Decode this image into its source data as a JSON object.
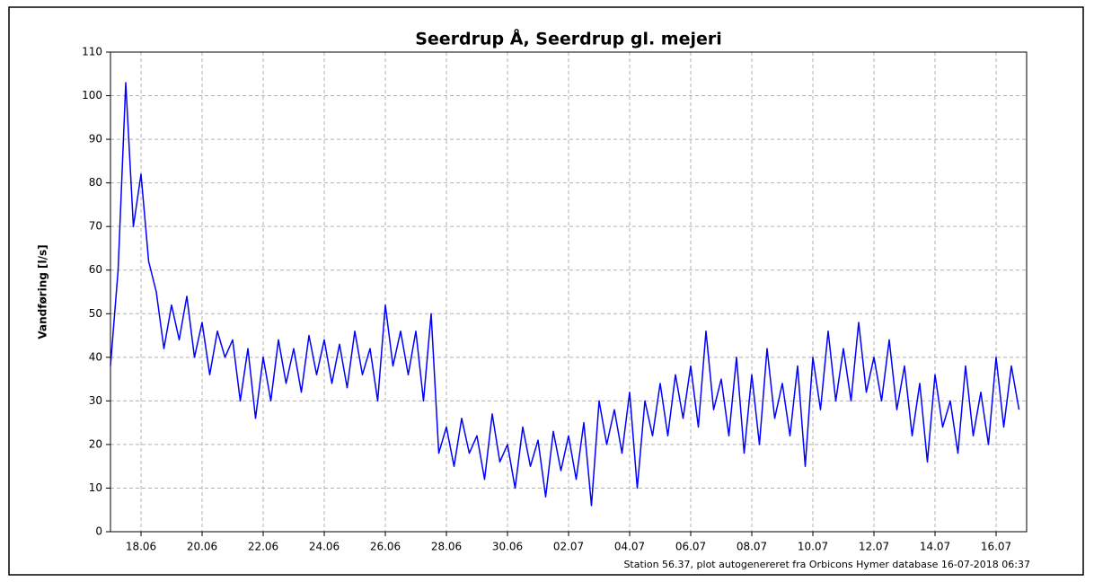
{
  "chart_data": {
    "type": "line",
    "title": "Seerdrup Å, Seerdrup gl. mejeri",
    "y_label": "Vandføring [l/s]",
    "footer": "Station 56.37, plot autogenereret fra Orbicons Hymer database 16-07-2018 06:37",
    "x": [
      0,
      0.25,
      0.5,
      0.75,
      1,
      1.25,
      1.5,
      1.75,
      2,
      2.25,
      2.5,
      2.75,
      3,
      3.25,
      3.5,
      3.75,
      4,
      4.25,
      4.5,
      4.75,
      5,
      5.25,
      5.5,
      5.75,
      6,
      6.25,
      6.5,
      6.75,
      7,
      7.25,
      7.5,
      7.75,
      8,
      8.25,
      8.5,
      8.75,
      9,
      9.25,
      9.5,
      9.75,
      10,
      10.25,
      10.5,
      10.75,
      11,
      11.25,
      11.5,
      11.75,
      12,
      12.25,
      12.5,
      12.75,
      13,
      13.25,
      13.5,
      13.75,
      14,
      14.25,
      14.5,
      14.75,
      15,
      15.25,
      15.5,
      15.75,
      16,
      16.25,
      16.5,
      16.75,
      17,
      17.25,
      17.5,
      17.75,
      18,
      18.25,
      18.5,
      18.75,
      19,
      19.25,
      19.5,
      19.75,
      20,
      20.25,
      20.5,
      20.75,
      21,
      21.25,
      21.5,
      21.75,
      22,
      22.25,
      22.5,
      22.75,
      23,
      23.25,
      23.5,
      23.75,
      24,
      24.25,
      24.5,
      24.75,
      25,
      25.25,
      25.5,
      25.75,
      26,
      26.25,
      26.5,
      26.75,
      27,
      27.25,
      27.5,
      27.75,
      28,
      28.25,
      28.5,
      28.75,
      29,
      29.25,
      29.5,
      29.75
    ],
    "series": [
      {
        "name": "Vandføring",
        "color": "#0000ff",
        "values": [
          38,
          60,
          103,
          70,
          82,
          62,
          55,
          42,
          52,
          44,
          54,
          40,
          48,
          36,
          46,
          40,
          44,
          30,
          42,
          26,
          40,
          30,
          44,
          34,
          42,
          32,
          45,
          36,
          44,
          34,
          43,
          33,
          46,
          36,
          42,
          30,
          52,
          38,
          46,
          36,
          46,
          30,
          50,
          18,
          24,
          15,
          26,
          18,
          22,
          12,
          27,
          16,
          20,
          10,
          24,
          15,
          21,
          8,
          23,
          14,
          22,
          12,
          25,
          6,
          30,
          20,
          28,
          18,
          32,
          10,
          30,
          22,
          34,
          22,
          36,
          26,
          38,
          24,
          46,
          28,
          35,
          22,
          40,
          18,
          36,
          20,
          42,
          26,
          34,
          22,
          38,
          15,
          40,
          28,
          46,
          30,
          42,
          30,
          48,
          32,
          40,
          30,
          44,
          28,
          38,
          22,
          34,
          16,
          36,
          24,
          30,
          18,
          38,
          22,
          32,
          20,
          40,
          24,
          38,
          28
        ]
      }
    ],
    "xlim": [
      0,
      30
    ],
    "xticks": [
      {
        "value": 1,
        "label": "18.06"
      },
      {
        "value": 3,
        "label": "20.06"
      },
      {
        "value": 5,
        "label": "22.06"
      },
      {
        "value": 7,
        "label": "24.06"
      },
      {
        "value": 9,
        "label": "26.06"
      },
      {
        "value": 11,
        "label": "28.06"
      },
      {
        "value": 13,
        "label": "30.06"
      },
      {
        "value": 15,
        "label": "02.07"
      },
      {
        "value": 17,
        "label": "04.07"
      },
      {
        "value": 19,
        "label": "06.07"
      },
      {
        "value": 21,
        "label": "08.07"
      },
      {
        "value": 23,
        "label": "10.07"
      },
      {
        "value": 25,
        "label": "12.07"
      },
      {
        "value": 27,
        "label": "14.07"
      },
      {
        "value": 29,
        "label": "16.07"
      }
    ],
    "ylim": [
      0,
      110
    ],
    "yticks": [
      0,
      10,
      20,
      30,
      40,
      50,
      60,
      70,
      80,
      90,
      100,
      110
    ],
    "grid": true
  }
}
